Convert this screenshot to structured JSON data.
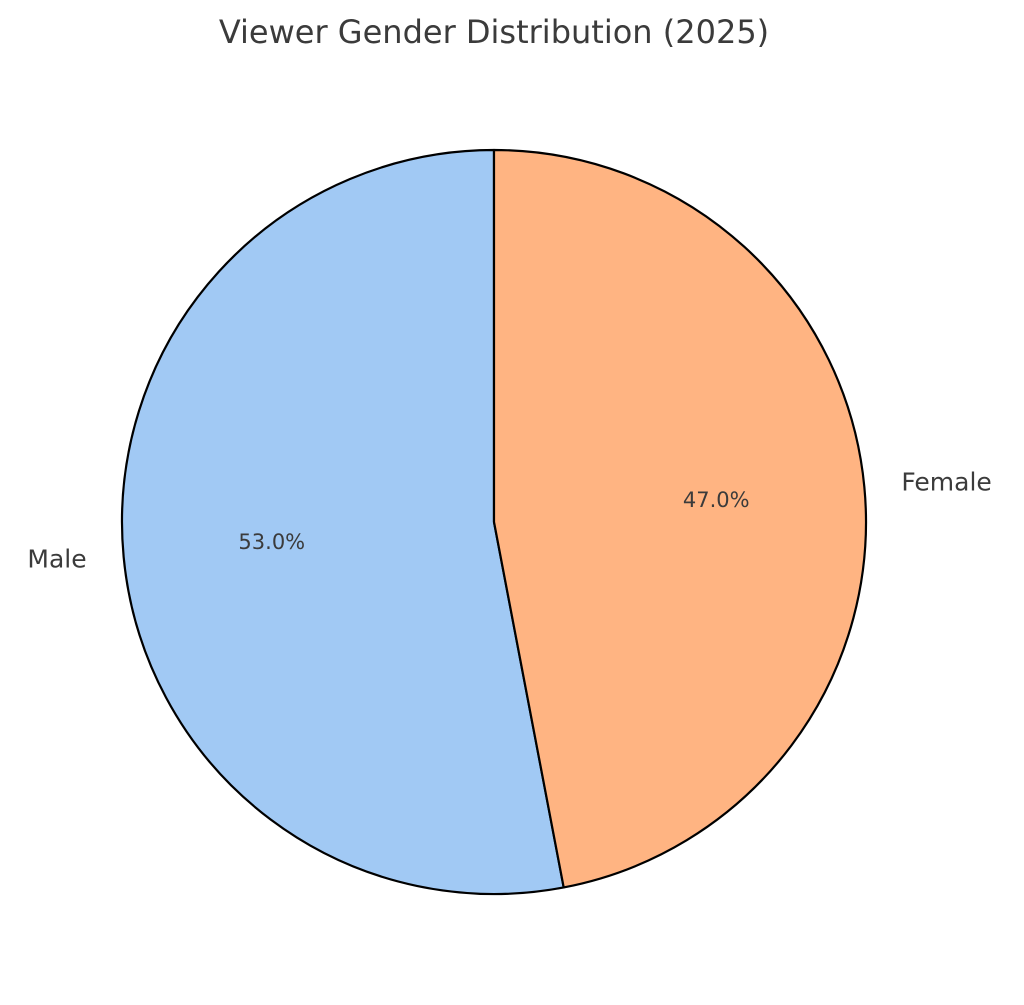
{
  "chart_data": {
    "type": "pie",
    "title": "Viewer Gender Distribution (2025)",
    "categories": [
      "Male",
      "Female"
    ],
    "values": [
      53.0,
      47.0
    ],
    "value_labels": [
      "53.0%",
      "47.0%"
    ],
    "colors": [
      "#a1c9f4",
      "#ffb482"
    ],
    "edge_color": "#000000",
    "start_angle": "top",
    "direction": "counterclockwise"
  }
}
